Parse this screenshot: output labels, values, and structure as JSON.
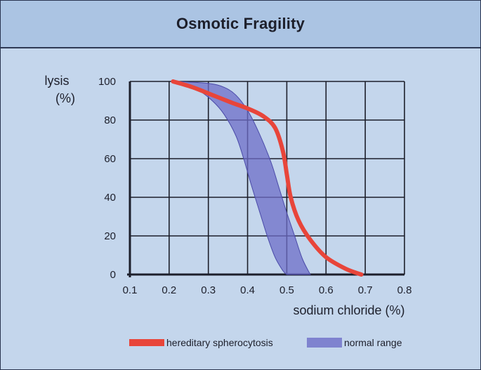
{
  "chart_data": {
    "type": "line",
    "title": "Osmotic Fragility",
    "xlabel": "sodium chloride (%)",
    "ylabel": [
      "lysis",
      "(%)"
    ],
    "xlim": [
      0.1,
      0.8
    ],
    "ylim": [
      0,
      100
    ],
    "x_ticks": [
      0.1,
      0.2,
      0.3,
      0.4,
      0.5,
      0.6,
      0.7,
      0.8
    ],
    "y_ticks": [
      0,
      20,
      40,
      60,
      80,
      100
    ],
    "grid": true,
    "legend_position": "bottom",
    "series": [
      {
        "name": "hereditary spherocytosis",
        "kind": "line",
        "color": "#e8453a",
        "x": [
          0.21,
          0.26,
          0.31,
          0.36,
          0.4,
          0.44,
          0.47,
          0.49,
          0.5,
          0.51,
          0.53,
          0.56,
          0.6,
          0.65,
          0.69
        ],
        "y": [
          100,
          97,
          93,
          89,
          86,
          82,
          76,
          64,
          52,
          40,
          28,
          18,
          9,
          3,
          0
        ]
      },
      {
        "name": "normal range",
        "kind": "band",
        "color": "#6e6ec8",
        "upper": {
          "x": [
            0.22,
            0.3,
            0.34,
            0.37,
            0.4,
            0.43,
            0.46,
            0.48,
            0.5,
            0.52,
            0.54,
            0.56
          ],
          "y": [
            100,
            99,
            97,
            93,
            85,
            73,
            58,
            45,
            32,
            20,
            8,
            0
          ]
        },
        "lower": {
          "x": [
            0.22,
            0.27,
            0.31,
            0.34,
            0.37,
            0.39,
            0.41,
            0.43,
            0.45,
            0.47,
            0.49,
            0.5
          ],
          "y": [
            100,
            96,
            90,
            83,
            72,
            60,
            46,
            33,
            20,
            9,
            2,
            0
          ]
        }
      }
    ]
  }
}
